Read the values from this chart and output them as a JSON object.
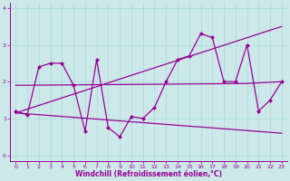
{
  "xlabel": "Windchill (Refroidissement éolien,°C)",
  "background_color": "#cce8e8",
  "line_color": "#990099",
  "xlim": [
    -0.5,
    23.5
  ],
  "ylim": [
    -0.15,
    4.15
  ],
  "xticks": [
    0,
    1,
    2,
    3,
    4,
    5,
    6,
    7,
    8,
    9,
    10,
    11,
    12,
    13,
    14,
    15,
    16,
    17,
    18,
    19,
    20,
    21,
    22,
    23
  ],
  "yticks": [
    0,
    1,
    2,
    3,
    4
  ],
  "grid_color": "#aadcdc",
  "main_line": {
    "x": [
      0,
      1,
      2,
      3,
      4,
      5,
      6,
      7,
      8,
      9,
      10,
      11,
      12,
      13,
      14,
      15,
      16,
      17,
      18,
      19,
      20,
      21,
      22,
      23
    ],
    "y": [
      1.2,
      1.1,
      2.4,
      2.5,
      2.5,
      1.9,
      0.65,
      2.6,
      0.75,
      0.5,
      1.05,
      1.0,
      1.3,
      2.0,
      2.6,
      2.7,
      3.3,
      3.2,
      2.0,
      2.0,
      3.0,
      1.2,
      1.5,
      2.0
    ]
  },
  "horiz_line": {
    "x": [
      0,
      20,
      23
    ],
    "y": [
      1.9,
      1.95,
      2.0
    ]
  },
  "upper_line": {
    "x": [
      0,
      23
    ],
    "y": [
      1.15,
      3.5
    ]
  },
  "lower_line": {
    "x": [
      0,
      23
    ],
    "y": [
      1.15,
      0.6
    ]
  }
}
